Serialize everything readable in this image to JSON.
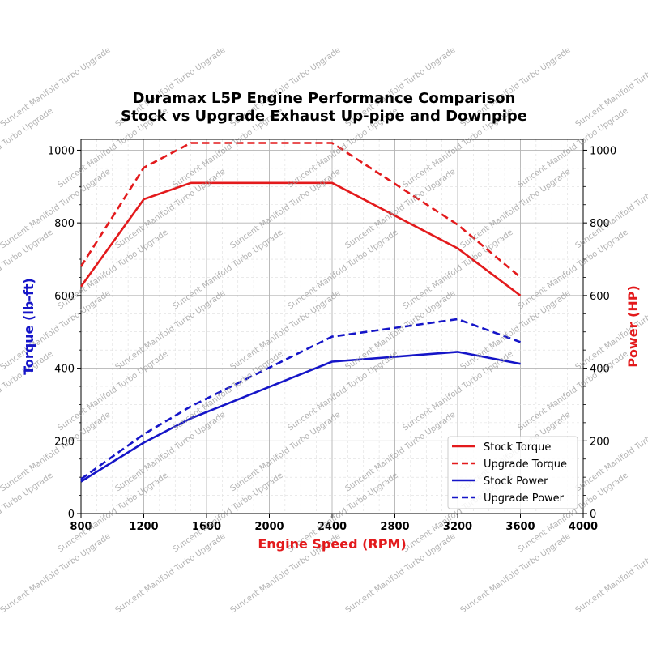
{
  "chart_data": {
    "type": "line",
    "title_line1": "Duramax L5P Engine Performance Comparison",
    "title_line2": "Stock vs Upgrade Exhaust Up-pipe and Downpipe",
    "xlabel": "Engine Speed (RPM)",
    "ylabel_left": "Torque (lb-ft)",
    "ylabel_right": "Power (HP)",
    "xlim": [
      800,
      4000
    ],
    "ylim": [
      0,
      1030
    ],
    "x_ticks": [
      800,
      1200,
      1600,
      2000,
      2400,
      2800,
      3200,
      3600,
      4000
    ],
    "y_ticks": [
      0,
      200,
      400,
      600,
      800,
      1000
    ],
    "grid": true,
    "legend_position": "lower-right",
    "x": [
      800,
      1200,
      1500,
      2400,
      3200,
      3600
    ],
    "series": [
      {
        "name": "Stock Torque",
        "axis": "left",
        "color": "#e31a1c",
        "style": "solid",
        "values": [
          625,
          865,
          910,
          910,
          730,
          600
        ]
      },
      {
        "name": "Upgrade Torque",
        "axis": "left",
        "color": "#e31a1c",
        "style": "dashed",
        "values": [
          680,
          952,
          1020,
          1020,
          795,
          650
        ]
      },
      {
        "name": "Stock Power",
        "axis": "right",
        "color": "#1515c8",
        "style": "solid",
        "values": [
          88,
          195,
          262,
          418,
          445,
          412
        ]
      },
      {
        "name": "Upgrade Power",
        "axis": "right",
        "color": "#1515c8",
        "style": "dashed",
        "values": [
          95,
          218,
          295,
          487,
          535,
          472
        ]
      }
    ],
    "watermark": "Suncent Manifold Turbo Upgrade"
  }
}
